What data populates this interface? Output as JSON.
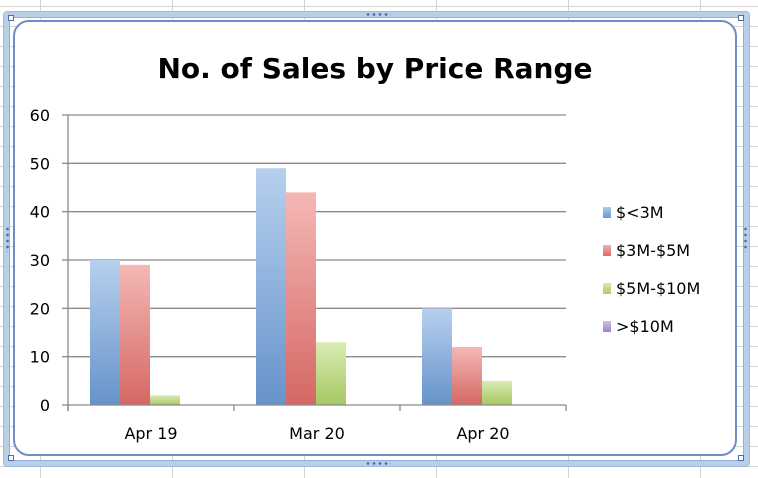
{
  "chart_data": {
    "type": "bar",
    "title": "No. of Sales by Price Range",
    "xlabel": "",
    "ylabel": "",
    "categories": [
      "Apr 19",
      "Mar 20",
      "Apr 20"
    ],
    "yticks": [
      "0",
      "10",
      "20",
      "30",
      "40",
      "50",
      "60"
    ],
    "ylim": [
      0,
      60
    ],
    "grid": true,
    "legend_position": "right",
    "series": [
      {
        "name": "$<3M",
        "values": [
          30,
          49,
          20
        ],
        "color": "#6fa0dc"
      },
      {
        "name": "$3M-$5M",
        "values": [
          29,
          44,
          12
        ],
        "color": "#e8706c"
      },
      {
        "name": "$5M-$10M",
        "values": [
          2,
          13,
          5
        ],
        "color": "#b3d96a"
      },
      {
        "name": ">$10M",
        "values": [
          0,
          0,
          0
        ],
        "color": "#a58bd0"
      }
    ]
  }
}
